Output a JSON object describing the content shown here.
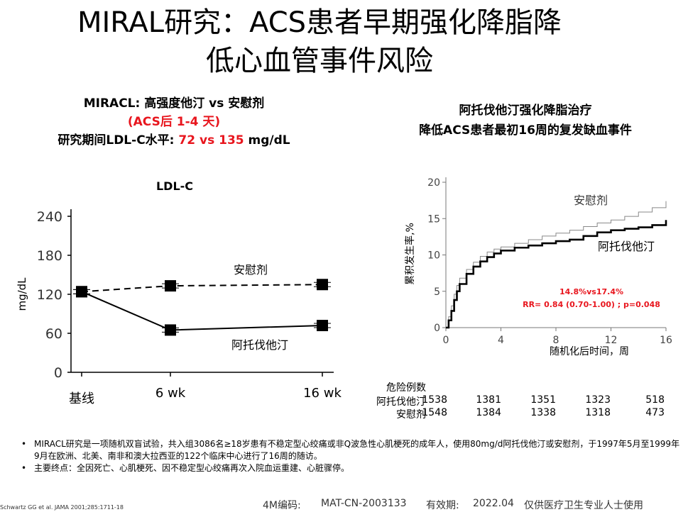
{
  "slide": {
    "title_line1": "MIRAL研究：ACS患者早期强化降脂降",
    "title_line2": "低心血管事件风险"
  },
  "left_panel": {
    "heading": "MIRACL: 高强度他汀 vs 安慰剂",
    "acs_note": "(ACS后 1-4 天)",
    "ldl_text": "研究期间LDL-C水平: ",
    "ldl_statin": "72",
    "ldl_vs": " vs ",
    "ldl_placebo": "135",
    "ldl_unit": " mg/dL"
  },
  "right_panel": {
    "heading1": "阿托伐他汀强化降脂治疗",
    "heading2": "降低ACS患者最初16周的复发缺血事件"
  },
  "colors": {
    "accent_red": "#e8161e"
  },
  "chart_data": [
    {
      "type": "line",
      "title": "LDL-C",
      "ylabel": "mg/dL",
      "xlabel": "",
      "ylim": [
        0,
        240
      ],
      "yticks": [
        "0",
        "60",
        "120",
        "180",
        "240"
      ],
      "categories": [
        "基线",
        "6 wk",
        "16 wk"
      ],
      "series": [
        {
          "name": "安慰剂",
          "style": "dashed",
          "values": [
            124,
            133,
            135
          ]
        },
        {
          "name": "阿托伐他汀",
          "style": "solid",
          "values": [
            124,
            65,
            72
          ]
        }
      ]
    },
    {
      "type": "line",
      "title": "",
      "ylabel": "累积发生率,%",
      "xlabel": "随机化后时间，周",
      "xlim": [
        0,
        16
      ],
      "ylim": [
        0,
        20
      ],
      "xticks": [
        "0",
        "4",
        "8",
        "12",
        "16"
      ],
      "yticks": [
        "0",
        "5",
        "10",
        "15",
        "20"
      ],
      "series": [
        {
          "name": "安慰剂",
          "color": "#888888",
          "x": [
            0,
            0.2,
            0.4,
            0.6,
            0.8,
            1,
            1.5,
            2,
            2.5,
            3,
            3.5,
            4,
            5,
            6,
            7,
            8,
            9,
            10,
            11,
            12,
            13,
            14,
            15,
            16
          ],
          "y": [
            0,
            1.5,
            3,
            4.6,
            5.8,
            6.8,
            8,
            9,
            9.8,
            10.4,
            10.8,
            11.1,
            11.6,
            12.1,
            12.6,
            13,
            13.4,
            13.9,
            14.4,
            14.8,
            15.3,
            15.9,
            16.5,
            17.4
          ]
        },
        {
          "name": "阿托伐他汀",
          "color": "#000000",
          "x": [
            0,
            0.2,
            0.4,
            0.6,
            0.8,
            1,
            1.5,
            2,
            2.5,
            3,
            3.5,
            4,
            5,
            6,
            7,
            8,
            9,
            10,
            11,
            12,
            13,
            14,
            15,
            16
          ],
          "y": [
            0,
            1,
            2.3,
            3.8,
            5,
            6,
            7.4,
            8.4,
            9.1,
            9.7,
            10.2,
            10.6,
            11,
            11.3,
            11.6,
            11.9,
            12.1,
            12.6,
            13.1,
            13.4,
            13.6,
            13.8,
            14.1,
            14.8
          ]
        }
      ],
      "annotation_line1": "14.8%vs17.4%",
      "annotation_line2": "RR= 0.84 (0.70-1.00) ; p=0.048",
      "annotation_color": "#e8161e",
      "risk_table": {
        "header": "危险例数",
        "rows": [
          {
            "label": "阿托伐他汀",
            "values": [
              "1538",
              "1381",
              "1351",
              "1323",
              "518"
            ]
          },
          {
            "label": "安慰剂",
            "values": [
              "1548",
              "1384",
              "1338",
              "1318",
              "473"
            ]
          }
        ]
      }
    }
  ],
  "notes": [
    "MIRACL研究是一项随机双盲试验，共入组3086名≥18岁患有不稳定型心绞痛或非Q波急性心肌梗死的成年人，使用80mg/d阿托伐他汀或安慰剂，于1997年5月至1999年9月在欧洲、北美、南非和澳大拉西亚的122个临床中心进行了16周的随访。",
    "主要终点：全因死亡、心肌梗死、因不稳定型心绞痛再次入院血运重建、心脏骤停。"
  ],
  "footer": {
    "reference": "Schwartz GG et al. JAMA 2001;285:1711-18",
    "code_label": "4M编码:",
    "code_value": "MAT-CN-2003133",
    "validity_label": "有效期:",
    "validity_value": "2022.04",
    "usage": "仅供医疗卫生专业人士使用"
  }
}
